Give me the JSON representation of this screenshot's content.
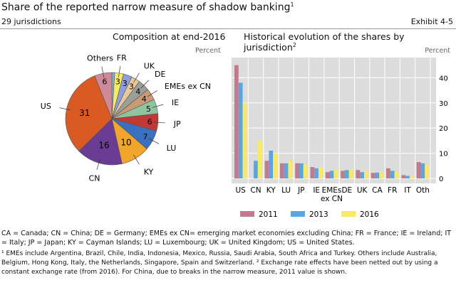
{
  "header": {
    "title": "Share of the reported narrow measure of shadow banking",
    "title_sup": "1",
    "subtitle": "29 jurisdictions",
    "exhibit": "Exhibit 4-5"
  },
  "chart_data": [
    {
      "type": "pie",
      "title": "Composition at end-2016",
      "unit": "Percent",
      "slices": [
        {
          "label": "",
          "value": 1,
          "color": "#6fb7e0"
        },
        {
          "label": "FR",
          "value": 3,
          "color": "#f7ec5e"
        },
        {
          "label": "",
          "value": 3,
          "color": "#8e9ee0"
        },
        {
          "label": "UK",
          "value": 3,
          "color": "#e9c99a"
        },
        {
          "label": "DE",
          "value": 4,
          "color": "#9a9f98"
        },
        {
          "label": "EMEs ex CN",
          "value": 4,
          "color": "#c99a74"
        },
        {
          "label": "IE",
          "value": 5,
          "color": "#8fc4a0"
        },
        {
          "label": "JP",
          "value": 6,
          "color": "#c03a35"
        },
        {
          "label": "LU",
          "value": 7,
          "color": "#3a70c0"
        },
        {
          "label": "KY",
          "value": 10,
          "color": "#f1a62b"
        },
        {
          "label": "CN",
          "value": 16,
          "color": "#6a3c94"
        },
        {
          "label": "US",
          "value": 31,
          "color": "#d95a22"
        },
        {
          "label": "Others",
          "value": 6,
          "color": "#cf8a9a"
        }
      ]
    },
    {
      "type": "bar",
      "title": "Historical evolution of the shares by jurisdiction",
      "title_sup": "2",
      "unit": "Percent",
      "categories": [
        "US",
        "CN",
        "KY",
        "LU",
        "JP",
        "IE",
        "EMEs ex CN",
        "DE",
        "UK",
        "CA",
        "FR",
        "IT",
        "Oth"
      ],
      "series": [
        {
          "name": "2011",
          "color": "#c27b8c",
          "values": [
            45,
            null,
            7,
            6,
            6,
            4.5,
            2.5,
            3,
            3.3,
            2.2,
            4,
            1.3,
            6.5
          ]
        },
        {
          "name": "2013",
          "color": "#5aa6e0",
          "values": [
            38,
            7,
            11,
            6,
            6,
            4,
            3,
            3.3,
            2.5,
            2.3,
            3,
            1,
            6
          ]
        },
        {
          "name": "2016",
          "color": "#fbe960",
          "values": [
            30,
            15,
            10,
            7,
            5.5,
            4.5,
            3.5,
            3.5,
            3,
            2.5,
            2.5,
            1,
            5.5
          ]
        }
      ],
      "ylim": [
        0,
        48
      ],
      "yticks": [
        0,
        10,
        20,
        30,
        40
      ],
      "grid": true,
      "legend": "bottom"
    }
  ],
  "footnotes": {
    "abbrev": "CA = Canada; CN = China; DE = Germany; EMEs ex CN= emerging market economies excluding China; FR = France; IE = Ireland; IT = Italy; JP = Japan; KY = Cayman Islands; LU = Luxembourg; UK = United Kingdom; US = United States.",
    "notes": "¹ EMEs include Argentina, Brazil, Chile, India, Indonesia, Mexico, Russia, Saudi Arabia, South Africa and Turkey. Others include Australia, Belgium, Hong Kong, Italy, the Netherlands, Singapore, Spain and Switzerland.     ² Exchange rate effects have been netted out by using a constant exchange rate (from 2016). For China, due to breaks in the narrow measure, 2011 value is shown."
  }
}
